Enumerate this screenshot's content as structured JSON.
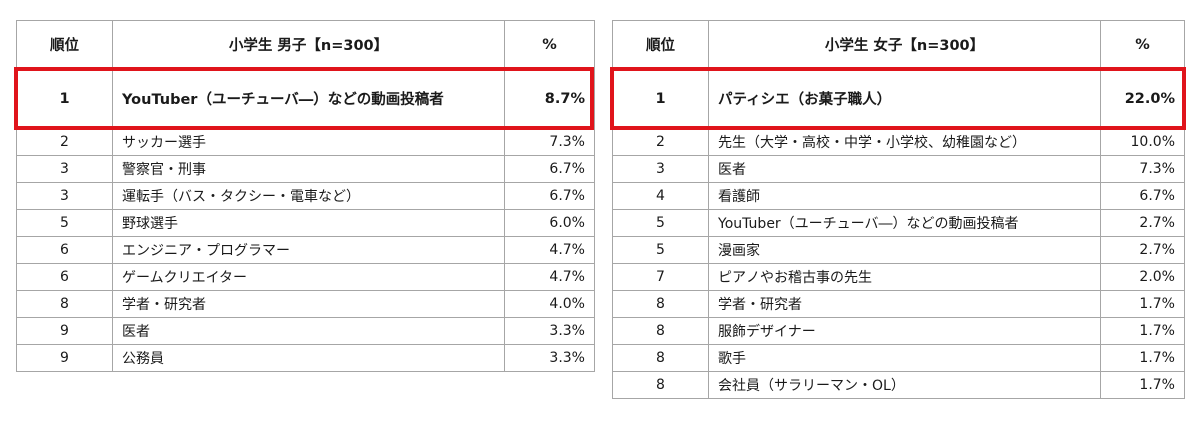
{
  "boys": {
    "headers": {
      "rank": "順位",
      "title": "小学生 男子【n=300】",
      "pct": "%"
    },
    "rows": [
      {
        "rank": "1",
        "name": "YouTuber（ユーチューバ―）などの動画投稿者",
        "pct": "8.7%"
      },
      {
        "rank": "2",
        "name": "サッカー選手",
        "pct": "7.3%"
      },
      {
        "rank": "3",
        "name": "警察官・刑事",
        "pct": "6.7%"
      },
      {
        "rank": "3",
        "name": "運転手（バス・タクシー・電車など）",
        "pct": "6.7%"
      },
      {
        "rank": "5",
        "name": "野球選手",
        "pct": "6.0%"
      },
      {
        "rank": "6",
        "name": "エンジニア・プログラマー",
        "pct": "4.7%"
      },
      {
        "rank": "6",
        "name": "ゲームクリエイター",
        "pct": "4.7%"
      },
      {
        "rank": "8",
        "name": "学者・研究者",
        "pct": "4.0%"
      },
      {
        "rank": "9",
        "name": "医者",
        "pct": "3.3%"
      },
      {
        "rank": "9",
        "name": "公務員",
        "pct": "3.3%"
      }
    ]
  },
  "girls": {
    "headers": {
      "rank": "順位",
      "title": "小学生 女子【n=300】",
      "pct": "%"
    },
    "rows": [
      {
        "rank": "1",
        "name": "パティシエ（お菓子職人）",
        "pct": "22.0%"
      },
      {
        "rank": "2",
        "name": "先生（大学・高校・中学・小学校、幼稚園など）",
        "pct": "10.0%"
      },
      {
        "rank": "3",
        "name": "医者",
        "pct": "7.3%"
      },
      {
        "rank": "4",
        "name": "看護師",
        "pct": "6.7%"
      },
      {
        "rank": "5",
        "name": "YouTuber（ユーチューバ―）などの動画投稿者",
        "pct": "2.7%"
      },
      {
        "rank": "5",
        "name": "漫画家",
        "pct": "2.7%"
      },
      {
        "rank": "7",
        "name": "ピアノやお稽古事の先生",
        "pct": "2.0%"
      },
      {
        "rank": "8",
        "name": "学者・研究者",
        "pct": "1.7%"
      },
      {
        "rank": "8",
        "name": "服飾デザイナー",
        "pct": "1.7%"
      },
      {
        "rank": "8",
        "name": "歌手",
        "pct": "1.7%"
      },
      {
        "rank": "8",
        "name": "会社員（サラリーマン・OL）",
        "pct": "1.7%"
      }
    ]
  },
  "colors": {
    "highlight": "#e0141b",
    "grid": "#a6a6a6"
  }
}
